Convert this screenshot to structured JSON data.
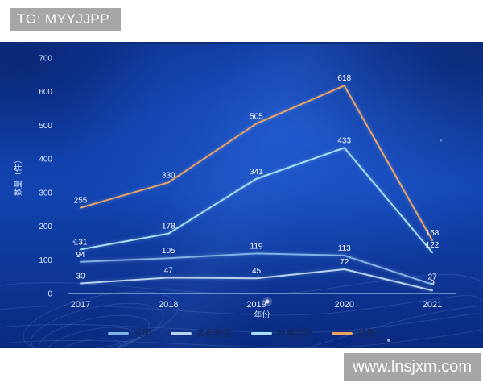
{
  "watermarks": {
    "telegram": "TG: MYYJJPP",
    "website": "www.lnsjxm.com"
  },
  "colors": {
    "page_bg": "#ffffff",
    "badge_bg": "#a6a6a6",
    "badge_text": "#ffffff",
    "chart_bg_top": "#0d3597",
    "chart_bg_mid": "#1244b1",
    "chart_bg_bottom": "#0a2a7e",
    "axis_line": "#9fc0ea",
    "tick_text": "#dce9fa",
    "data_label": "#ffffff",
    "legend_text": "#132a66"
  },
  "chart_data": {
    "type": "line",
    "title": "",
    "xlabel": "年份",
    "ylabel": "数量（件）",
    "x": [
      "2017",
      "2018",
      "2019",
      "2020",
      "2021"
    ],
    "ylim": [
      0,
      700
    ],
    "ytick_interval": 100,
    "grid": false,
    "legend_position": "bottom",
    "series": [
      {
        "name": "发明",
        "color": "#7fb2e5",
        "values": [
          94,
          105,
          119,
          113,
          27
        ]
      },
      {
        "name": "实用新型",
        "color": "#b9d2f0",
        "values": [
          30,
          47,
          45,
          72,
          9
        ]
      },
      {
        "name": "外观设计",
        "color": "#a5e0f6",
        "values": [
          131,
          178,
          341,
          433,
          122
        ]
      },
      {
        "name": "总量",
        "color": "#eda35f",
        "values": [
          255,
          330,
          505,
          618,
          158
        ]
      }
    ]
  }
}
